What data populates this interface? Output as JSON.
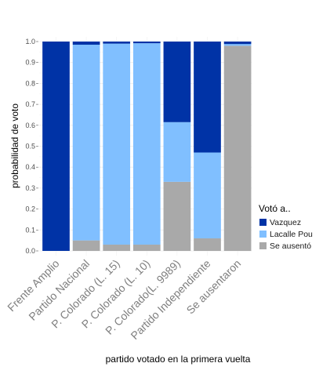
{
  "chart_data": {
    "type": "bar",
    "stacked": true,
    "categories": [
      "Frente Amplio",
      "Partido Nacional",
      "P. Colorado (L. 15)",
      "P. Colorado (L. 10)",
      "P. Colorado(L. 9989)",
      "Partido Independiente",
      "Se ausentaron"
    ],
    "series": [
      {
        "name": "Se ausentó",
        "color": "#a9a9a9",
        "values": [
          0.0,
          0.05,
          0.03,
          0.03,
          0.33,
          0.06,
          0.98
        ]
      },
      {
        "name": "Lacalle Pou",
        "color": "#80bfff",
        "values": [
          0.0,
          0.935,
          0.96,
          0.962,
          0.285,
          0.41,
          0.008
        ]
      },
      {
        "name": "Vazquez",
        "color": "#0033a6",
        "values": [
          1.0,
          0.015,
          0.01,
          0.008,
          0.385,
          0.53,
          0.012
        ]
      }
    ],
    "ylim": [
      0,
      1.0
    ],
    "yticks": [
      "0.0",
      "0.1",
      "0.2",
      "0.3",
      "0.4",
      "0.5",
      "0.6",
      "0.7",
      "0.8",
      "0.9",
      "1.0"
    ],
    "xlabel": "partido votado en la primera vuelta",
    "ylabel": "probabilidad de voto",
    "legend_title": "Votó a..",
    "legend_order": [
      "Vazquez",
      "Lacalle Pou",
      "Se ausentó"
    ],
    "legend_placement": "right",
    "grid": true
  }
}
